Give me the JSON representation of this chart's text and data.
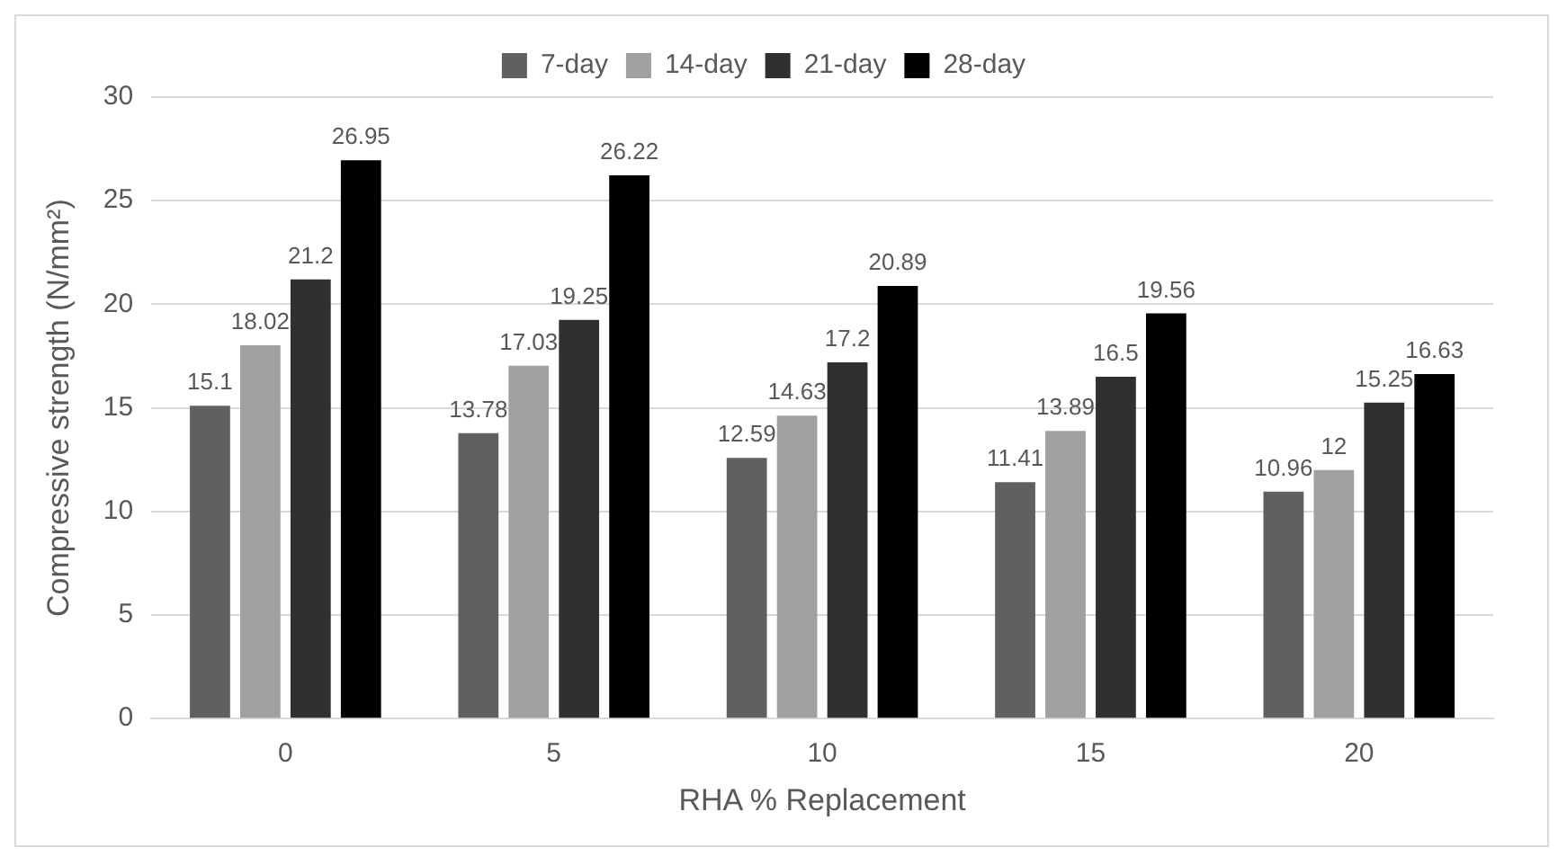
{
  "chart_data": {
    "type": "bar",
    "xlabel": "RHA % Replacement",
    "ylabel": "Compressive strength (N/mm²)",
    "categories": [
      "0",
      "5",
      "10",
      "15",
      "20"
    ],
    "series": [
      {
        "name": "7-day",
        "color": "#606060",
        "values": [
          15.1,
          13.78,
          12.59,
          11.41,
          10.96
        ]
      },
      {
        "name": "14-day",
        "color": "#a0a0a0",
        "values": [
          18.02,
          17.03,
          14.63,
          13.89,
          12
        ]
      },
      {
        "name": "21-day",
        "color": "#303030",
        "values": [
          21.2,
          19.25,
          17.2,
          16.5,
          15.25
        ]
      },
      {
        "name": "28-day",
        "color": "#000000",
        "values": [
          26.95,
          26.22,
          20.89,
          19.56,
          16.63
        ]
      }
    ],
    "ylim": [
      0,
      30
    ],
    "yticks": [
      0,
      5,
      10,
      15,
      20,
      25,
      30
    ],
    "grid": "y",
    "legend": "top",
    "data_labels": true
  }
}
